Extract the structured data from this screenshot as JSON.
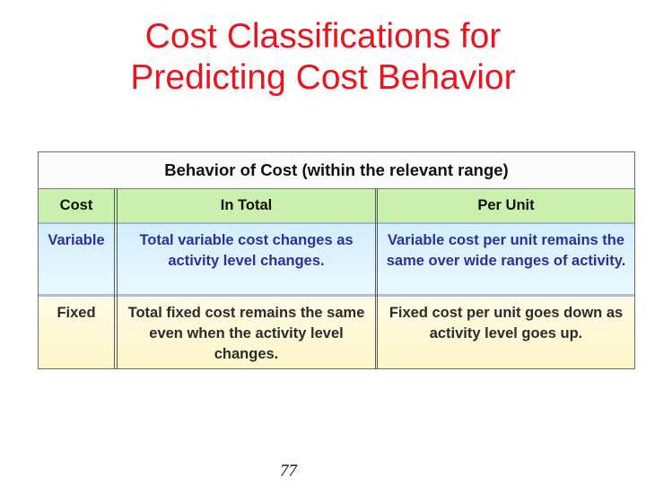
{
  "slide": {
    "title_line1": "Cost Classifications for",
    "title_line2": "Predicting Cost Behavior",
    "page_number": "77"
  },
  "table": {
    "caption": "Behavior of Cost (within the relevant range)",
    "headers": [
      "Cost",
      "In Total",
      "Per Unit"
    ],
    "rows": [
      {
        "cost": "Variable",
        "in_total": "Total variable cost changes as activity level changes.",
        "per_unit": "Variable cost per unit remains the same over wide ranges of activity."
      },
      {
        "cost": "Fixed",
        "in_total": "Total fixed cost remains the same even when the activity level changes.",
        "per_unit": "Fixed cost per unit goes down as activity level goes up."
      }
    ]
  },
  "colors": {
    "title": "#e8141e",
    "header_row": "#c9f0ad",
    "variable_row": "#d3eefc",
    "fixed_row": "#fff6c9",
    "variable_text": "#2f2f9a"
  }
}
